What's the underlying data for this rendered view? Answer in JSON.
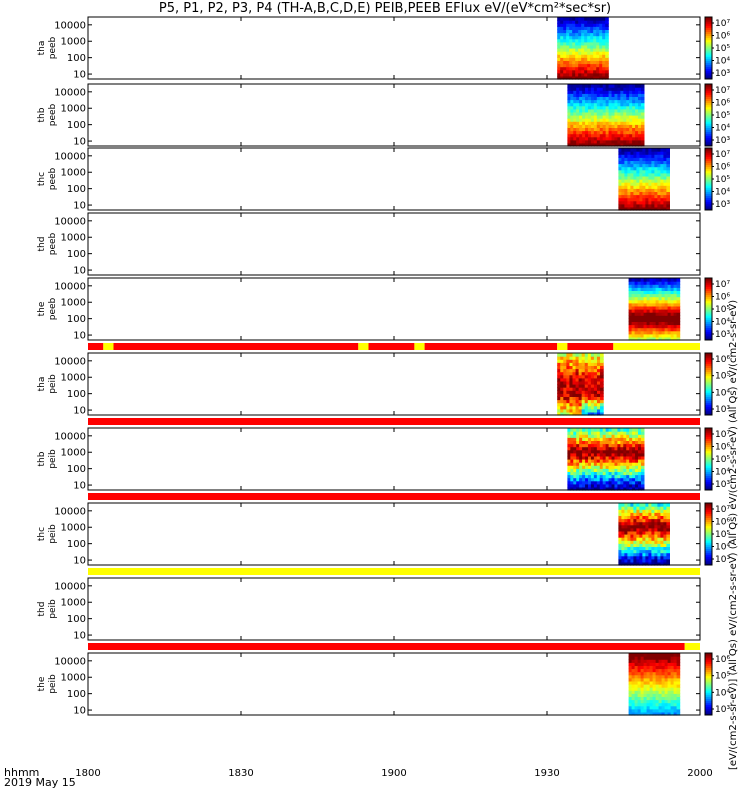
{
  "title": "P5, P1, P2, P3, P4 (TH-A,B,C,D,E) PEIB,PEEB EFlux eV/(eV*cm²*sec*sr)",
  "time_axis_label": "hhmm",
  "date_label": "2019 May 15",
  "side_label": "[eV/(cm2-s-sr-eV)] (All Qs) eV/(cm2-s-sr-eV) (All Qs) eV/(cm2-s-sr-eV) (All Qs) eV/(cm2-s-sr-eV)",
  "colors": {
    "red": "#ff0000",
    "yellow": "#ffff00",
    "black": "#000000"
  },
  "chart_data": {
    "type": "heatmap",
    "x_axis": {
      "range": [
        1800,
        2000
      ],
      "ticks": [
        "1800",
        "1830",
        "1900",
        "1930",
        "2000"
      ]
    },
    "y_axis": {
      "scale": "log",
      "range": [
        5,
        30000
      ],
      "ticks": [
        "10",
        "100",
        "1000",
        "10000"
      ]
    },
    "panels": [
      {
        "label_line1": "tha",
        "label_line2": "peeb",
        "x_start": 1932,
        "x_end": 1942,
        "colorbar": true,
        "colorbar_ticks": [
          "10³",
          "10⁴",
          "10⁵",
          "10⁶",
          "10⁷"
        ],
        "pattern": "electron"
      },
      {
        "label_line1": "thb",
        "label_line2": "peeb",
        "x_start": 1934,
        "x_end": 1949,
        "colorbar": true,
        "colorbar_ticks": [
          "10³",
          "10⁴",
          "10⁵",
          "10⁶",
          "10⁷"
        ],
        "pattern": "electron"
      },
      {
        "label_line1": "thc",
        "label_line2": "peeb",
        "x_start": 1944,
        "x_end": 1954,
        "colorbar": true,
        "colorbar_ticks": [
          "10³",
          "10⁴",
          "10⁵",
          "10⁶",
          "10⁷"
        ],
        "pattern": "electron"
      },
      {
        "label_line1": "thd",
        "label_line2": "peeb",
        "x_start": null,
        "x_end": null,
        "colorbar": false,
        "colorbar_ticks": [],
        "pattern": "none"
      },
      {
        "label_line1": "the",
        "label_line2": "peeb",
        "x_start": 1946,
        "x_end": 1956,
        "colorbar": true,
        "colorbar_ticks": [
          "10³",
          "10⁴",
          "10⁵",
          "10⁶",
          "10⁷"
        ],
        "pattern": "electron2"
      },
      {
        "label_line1": "tha",
        "label_line2": "peib",
        "x_start": 1932,
        "x_end": 1941,
        "colorbar": true,
        "colorbar_ticks": [
          "10³",
          "10⁴",
          "10⁵",
          "10⁶"
        ],
        "pattern": "ion_low"
      },
      {
        "label_line1": "thb",
        "label_line2": "peib",
        "x_start": 1934,
        "x_end": 1949,
        "colorbar": true,
        "colorbar_ticks": [
          "10³",
          "10⁴",
          "10⁵",
          "10⁶",
          "10⁷"
        ],
        "pattern": "ion_mid"
      },
      {
        "label_line1": "thc",
        "label_line2": "peib",
        "x_start": 1944,
        "x_end": 1954,
        "colorbar": true,
        "colorbar_ticks": [
          "10³",
          "10⁴",
          "10⁵",
          "10⁶",
          "10⁷"
        ],
        "pattern": "ion_mid"
      },
      {
        "label_line1": "thd",
        "label_line2": "peib",
        "x_start": null,
        "x_end": null,
        "colorbar": false,
        "colorbar_ticks": [],
        "pattern": "none"
      },
      {
        "label_line1": "the",
        "label_line2": "peib",
        "x_start": 1946,
        "x_end": 1956,
        "colorbar": true,
        "colorbar_ticks": [
          "10³",
          "10⁴",
          "10⁵",
          "10⁶"
        ],
        "pattern": "ion_hi"
      }
    ],
    "status_bars": [
      {
        "after_panel": 4,
        "segments": [
          {
            "from": 1800,
            "to": 1803,
            "color": "red"
          },
          {
            "from": 1803,
            "to": 1805,
            "color": "yellow"
          },
          {
            "from": 1805,
            "to": 1853,
            "color": "red"
          },
          {
            "from": 1853,
            "to": 1855,
            "color": "yellow"
          },
          {
            "from": 1855,
            "to": 1904,
            "color": "red"
          },
          {
            "from": 1904,
            "to": 1906,
            "color": "yellow"
          },
          {
            "from": 1906,
            "to": 1932,
            "color": "red"
          },
          {
            "from": 1932,
            "to": 1934,
            "color": "yellow"
          },
          {
            "from": 1934,
            "to": 1943,
            "color": "red"
          },
          {
            "from": 1943,
            "to": 2000,
            "color": "yellow"
          }
        ]
      },
      {
        "after_panel": 5,
        "segments": [
          {
            "from": 1800,
            "to": 2000,
            "color": "red"
          }
        ]
      },
      {
        "after_panel": 6,
        "segments": [
          {
            "from": 1800,
            "to": 2000,
            "color": "red"
          }
        ]
      },
      {
        "after_panel": 7,
        "segments": [
          {
            "from": 1800,
            "to": 2000,
            "color": "yellow"
          }
        ]
      },
      {
        "after_panel": 8,
        "segments": [
          {
            "from": 1800,
            "to": 1957,
            "color": "red"
          },
          {
            "from": 1957,
            "to": 2000,
            "color": "yellow"
          }
        ]
      }
    ]
  }
}
